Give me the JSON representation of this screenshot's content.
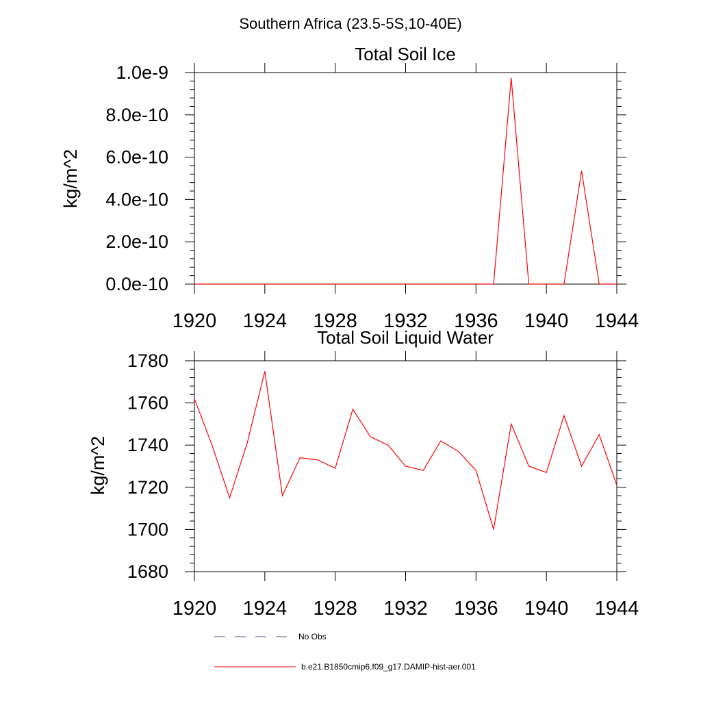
{
  "suptitle": "Southern Africa (23.5-5S,10-40E)",
  "legend": {
    "entries": [
      {
        "label": "No Obs",
        "color": "#4b4b8f",
        "style": "dashed"
      },
      {
        "label": "b.e21.B1850cmip6.f09_g17.DAMIP-hist-aer.001",
        "color": "#ff0000",
        "style": "solid"
      }
    ]
  },
  "chart_data": [
    {
      "type": "line",
      "title": "Total Soil Ice",
      "xlabel": "",
      "ylabel": "kg/m^2",
      "xlim": [
        1920,
        1944
      ],
      "ylim": [
        0,
        1e-09
      ],
      "xticks": [
        1920,
        1924,
        1928,
        1932,
        1936,
        1940,
        1944
      ],
      "xtick_labels": [
        "1920",
        "1924",
        "1928",
        "1932",
        "1936",
        "1940",
        "1944"
      ],
      "yticks": [
        0,
        2e-10,
        4e-10,
        6e-10,
        8e-10,
        1e-09
      ],
      "ytick_labels": [
        "0.0e-10",
        "2.0e-10",
        "4.0e-10",
        "6.0e-10",
        "8.0e-10",
        "1.0e-9"
      ],
      "series": [
        {
          "name": "b.e21.B1850cmip6.f09_g17.DAMIP-hist-aer.001",
          "color": "#ff0000",
          "x": [
            1920,
            1921,
            1922,
            1923,
            1924,
            1925,
            1926,
            1927,
            1928,
            1929,
            1930,
            1931,
            1932,
            1933,
            1934,
            1935,
            1936,
            1937,
            1938,
            1939,
            1940,
            1941,
            1942,
            1943,
            1944
          ],
          "y": [
            0,
            0,
            0,
            0,
            0,
            0,
            0,
            0,
            0,
            0,
            0,
            0,
            0,
            0,
            0,
            0,
            0,
            0,
            9.75e-10,
            0,
            0,
            0,
            5.35e-10,
            0,
            0
          ]
        }
      ]
    },
    {
      "type": "line",
      "title": "Total Soil Liquid Water",
      "xlabel": "",
      "ylabel": "kg/m^2",
      "xlim": [
        1920,
        1944
      ],
      "ylim": [
        1680,
        1780
      ],
      "xticks": [
        1920,
        1924,
        1928,
        1932,
        1936,
        1940,
        1944
      ],
      "xtick_labels": [
        "1920",
        "1924",
        "1928",
        "1932",
        "1936",
        "1940",
        "1944"
      ],
      "yticks": [
        1680,
        1700,
        1720,
        1740,
        1760,
        1780
      ],
      "ytick_labels": [
        "1680",
        "1700",
        "1720",
        "1740",
        "1760",
        "1780"
      ],
      "series": [
        {
          "name": "b.e21.B1850cmip6.f09_g17.DAMIP-hist-aer.001",
          "color": "#ff0000",
          "x": [
            1920,
            1921,
            1922,
            1923,
            1924,
            1925,
            1926,
            1927,
            1928,
            1929,
            1930,
            1931,
            1932,
            1933,
            1934,
            1935,
            1936,
            1937,
            1938,
            1939,
            1940,
            1941,
            1942,
            1943,
            1944
          ],
          "y": [
            1762,
            1740,
            1715,
            1741,
            1775,
            1716,
            1734,
            1733,
            1729,
            1757,
            1744,
            1740,
            1730,
            1728,
            1742,
            1737,
            1728,
            1700,
            1750,
            1730,
            1727,
            1754,
            1730,
            1745,
            1721
          ]
        }
      ]
    }
  ]
}
